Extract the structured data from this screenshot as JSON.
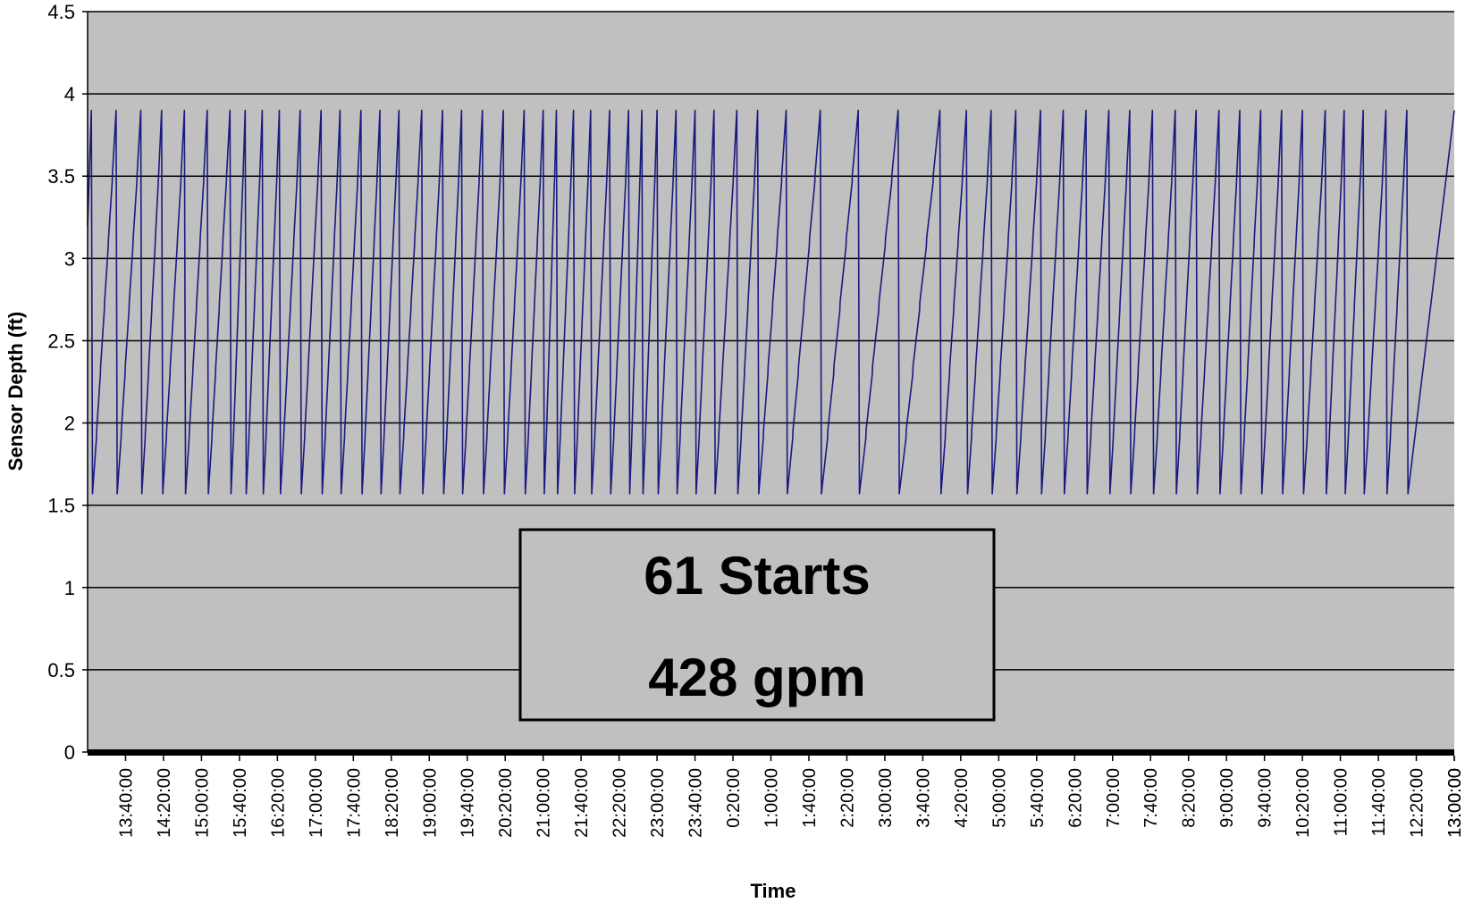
{
  "chart_data": {
    "type": "line",
    "title": "",
    "xlabel": "Time",
    "ylabel": "Sensor Depth (ft)",
    "ylim": [
      0,
      4.5
    ],
    "yticks": [
      "0",
      "0.5",
      "1",
      "1.5",
      "2",
      "2.5",
      "3",
      "3.5",
      "4",
      "4.5"
    ],
    "xticks": [
      "13:00:00",
      "13:40:00",
      "14:20:00",
      "15:00:00",
      "15:40:00",
      "16:20:00",
      "17:00:00",
      "17:40:00",
      "18:20:00",
      "19:00:00",
      "19:40:00",
      "20:20:00",
      "21:00:00",
      "21:40:00",
      "22:20:00",
      "23:00:00",
      "23:40:00",
      "0:20:00",
      "1:00:00",
      "1:40:00",
      "2:20:00",
      "3:00:00",
      "3:40:00",
      "4:20:00",
      "5:00:00",
      "5:40:00",
      "6:20:00",
      "7:00:00",
      "7:40:00",
      "8:20:00",
      "9:00:00",
      "9:40:00",
      "10:20:00",
      "11:00:00",
      "11:40:00",
      "12:20:00",
      "13:00:00"
    ],
    "grid": true,
    "series": [
      {
        "color": "#1a1a80",
        "cycle_low": 1.57,
        "cycle_high": 3.9,
        "pump_starts_at": [
          "13:04:00",
          "13:30:00",
          "13:56:00",
          "14:18:00",
          "14:42:00",
          "15:06:00",
          "15:30:00",
          "15:46:00",
          "16:04:00",
          "16:22:00",
          "16:44:00",
          "17:06:00",
          "17:26:00",
          "17:48:00",
          "18:08:00",
          "18:28:00",
          "18:52:00",
          "19:14:00",
          "19:34:00",
          "19:56:00",
          "20:18:00",
          "20:40:00",
          "21:00:00",
          "21:14:00",
          "21:32:00",
          "21:50:00",
          "22:10:00",
          "22:30:00",
          "22:44:00",
          "23:00:00",
          "23:20:00",
          "23:40:00",
          "0:00:00",
          "0:24:00",
          "0:46:00",
          "1:16:00",
          "1:52:00",
          "2:32:00",
          "3:14:00",
          "3:58:00",
          "4:26:00",
          "4:52:00",
          "5:18:00",
          "5:44:00",
          "6:08:00",
          "6:32:00",
          "6:56:00",
          "7:18:00",
          "7:42:00",
          "8:06:00",
          "8:28:00",
          "8:52:00",
          "9:14:00",
          "9:36:00",
          "9:58:00",
          "10:20:00",
          "10:44:00",
          "11:04:00",
          "11:24:00",
          "11:48:00",
          "12:10:00"
        ]
      }
    ],
    "annotation": [
      "61 Starts",
      "428 gpm"
    ]
  }
}
